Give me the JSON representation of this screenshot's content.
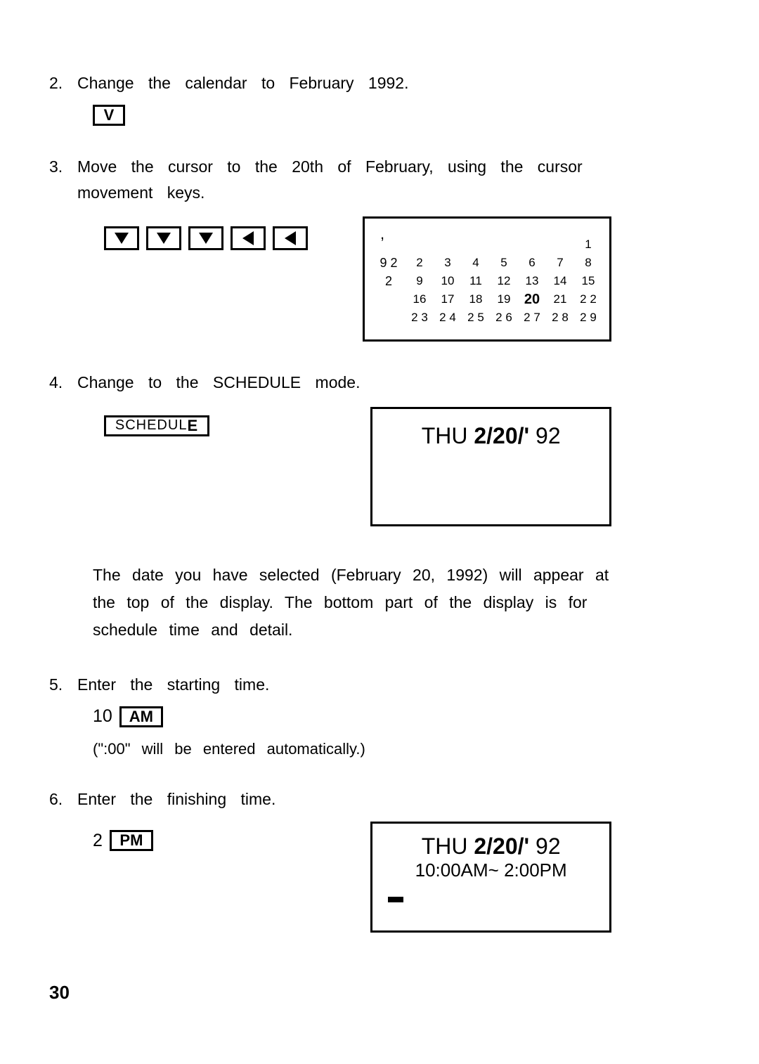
{
  "step2": {
    "num": "2.",
    "text": "Change the calendar to February 1992.",
    "key": "V"
  },
  "step3": {
    "num": "3.",
    "text": "Move the cursor to the 20th of February, using the cursor movement keys."
  },
  "calendar": {
    "year_top": "9 2",
    "month": "2",
    "rows": [
      [
        "",
        "",
        "",
        "",
        "",
        "",
        "",
        "1"
      ],
      [
        "",
        "2",
        "3",
        "4",
        "5",
        "6",
        "7",
        "8"
      ],
      [
        "",
        "9",
        "10",
        "11",
        "12",
        "13",
        "14",
        "15"
      ],
      [
        "",
        "16",
        "17",
        "18",
        "19",
        "20",
        "21",
        "2 2"
      ],
      [
        "",
        "2 3",
        "2 4",
        "2 5",
        "2 6",
        "2 7",
        "2 8",
        "2 9"
      ]
    ],
    "highlight_day": "20"
  },
  "step4": {
    "num": "4.",
    "text": "Change to the SCHEDULE mode.",
    "key": "SCHEDULE"
  },
  "lcd1": {
    "prefix": "THU ",
    "bold": "2/20/'",
    "suffix": " 92"
  },
  "paragraph": "The date you have selected (February 20, 1992) will appear at the top of the display. The bottom part of the display is for schedule time and detail.",
  "step5": {
    "num": "5.",
    "text": "Enter the starting time.",
    "value": "10",
    "key": "AM",
    "note": "(\":00\" will be entered automatically.)"
  },
  "step6": {
    "num": "6.",
    "text": "Enter the finishing time.",
    "value": "2",
    "key": "PM"
  },
  "lcd2": {
    "line1_prefix": "THU ",
    "line1_bold": "2/20/'",
    "line1_suffix": " 92",
    "line2": "10:00AM~ 2:00PM"
  },
  "page_number": "30"
}
